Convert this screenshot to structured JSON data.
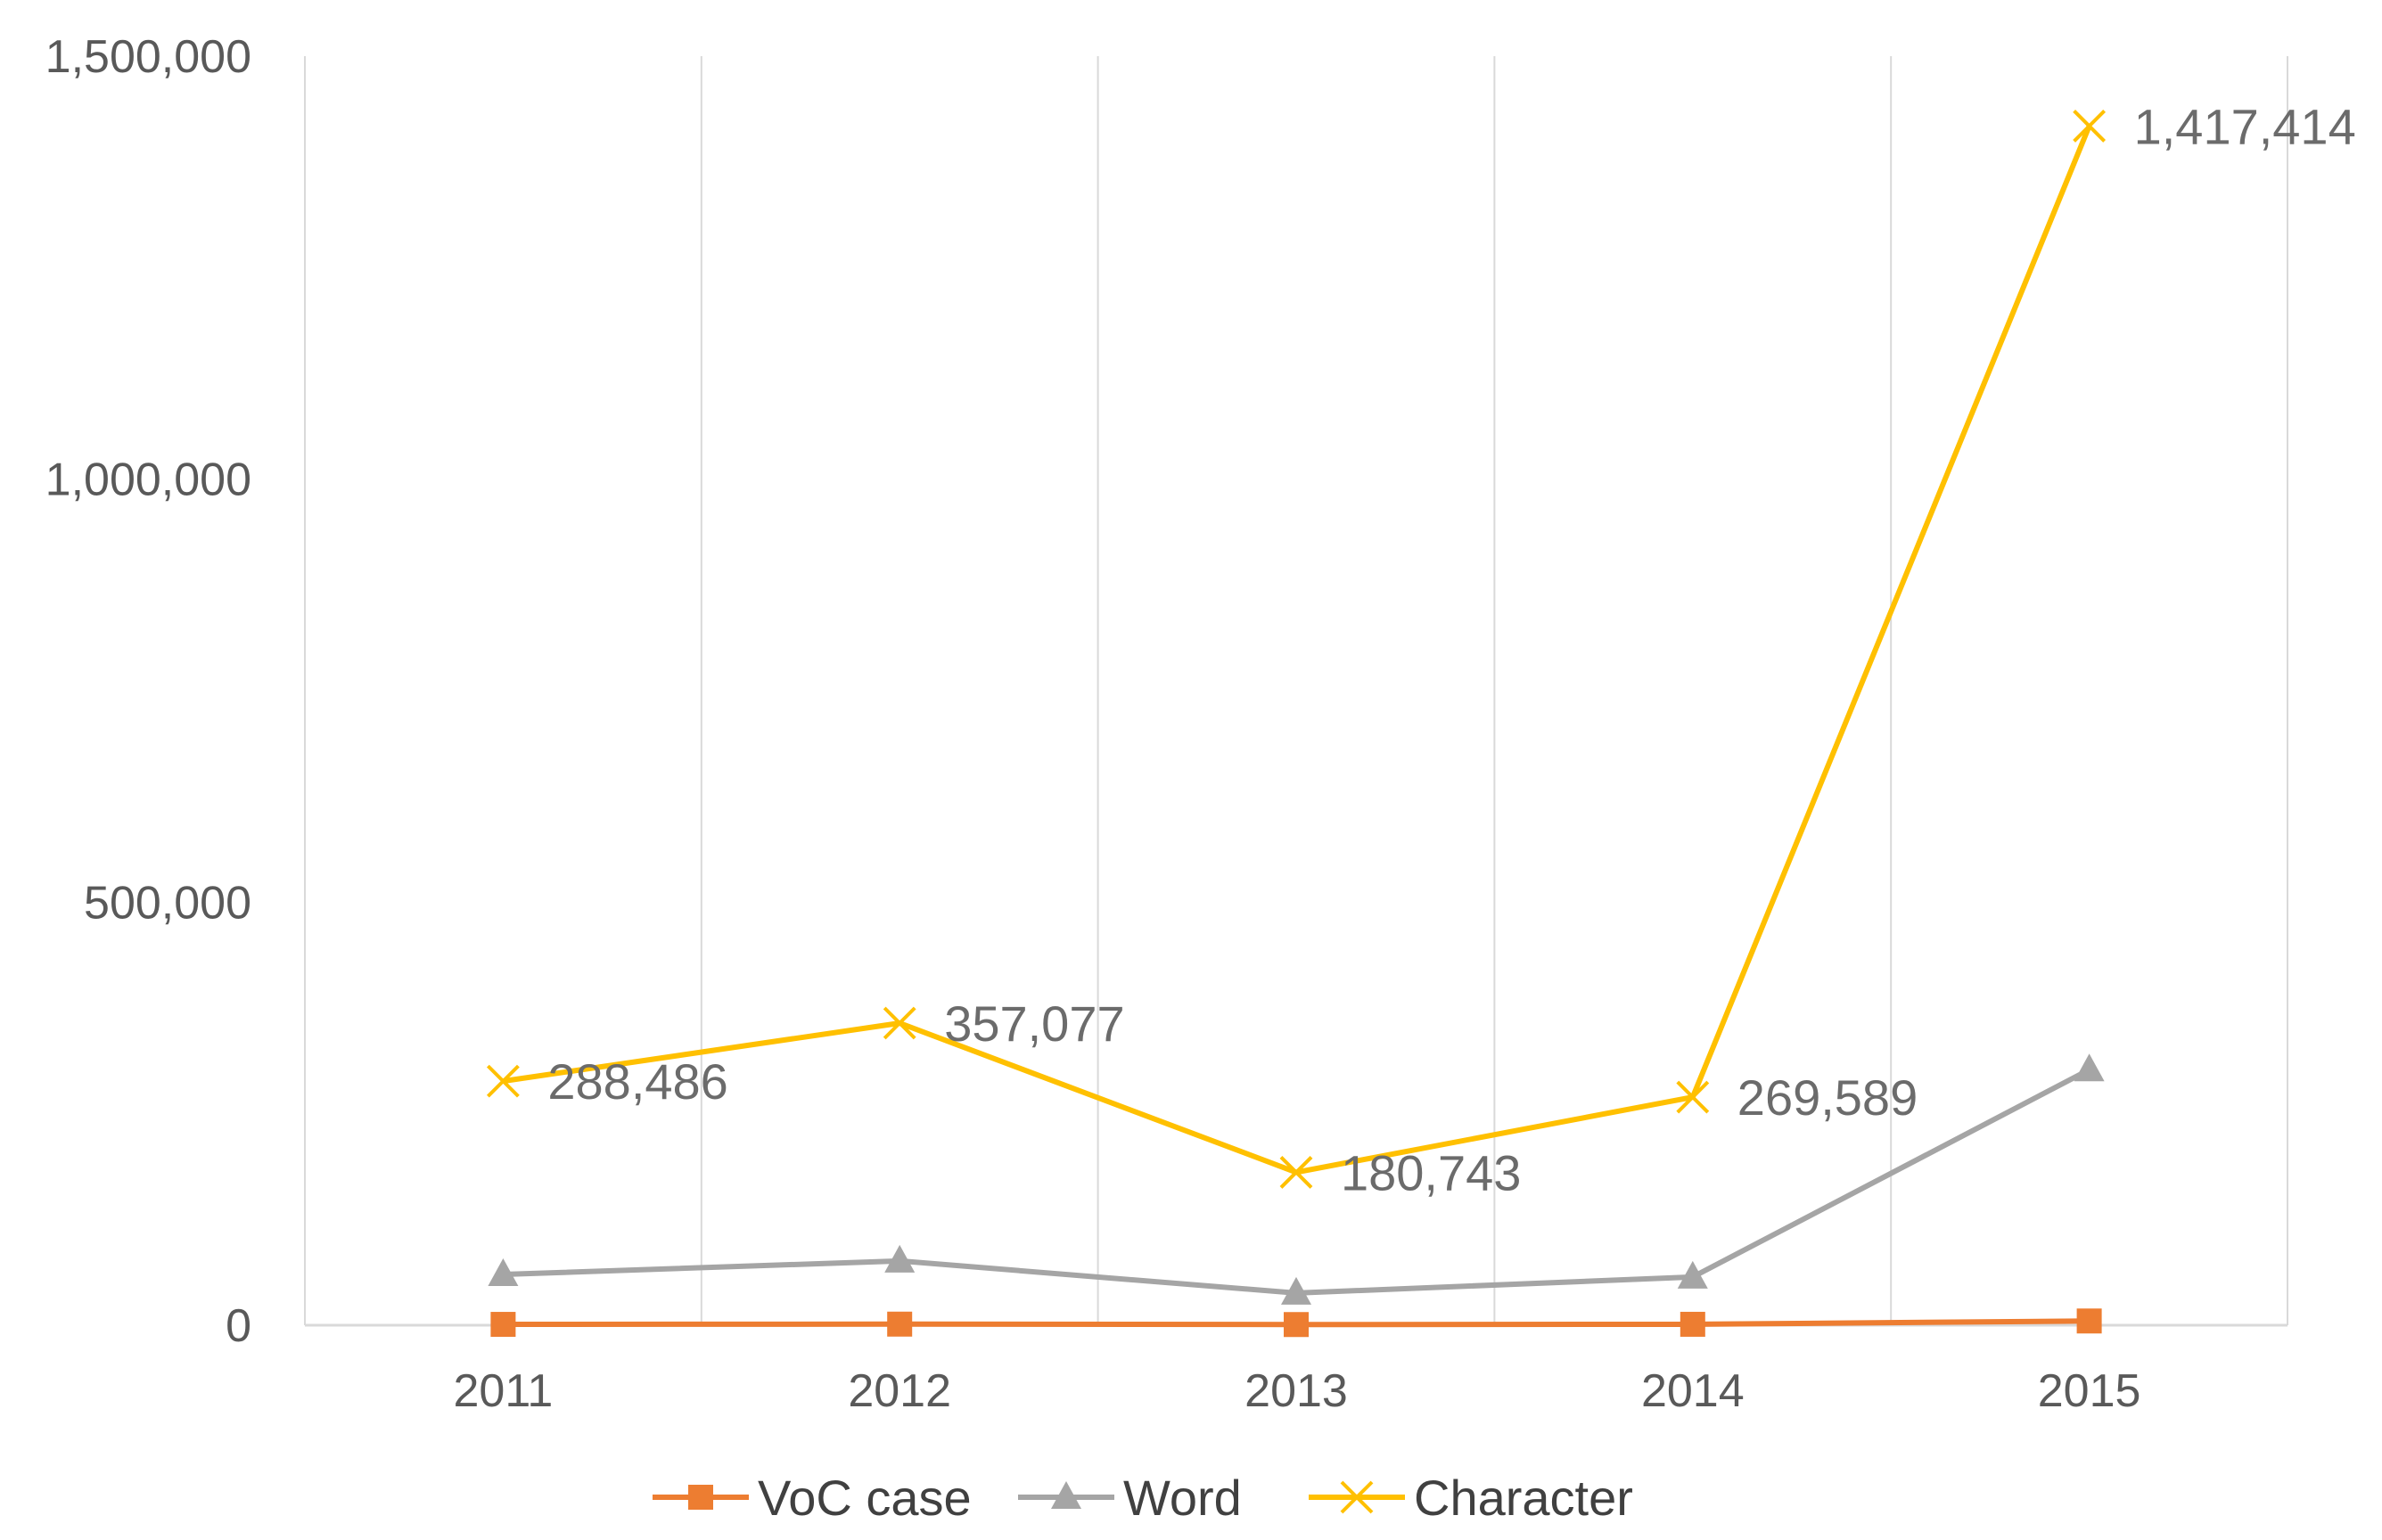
{
  "chart_data": {
    "type": "line",
    "title": "",
    "xlabel": "",
    "ylabel": "",
    "categories": [
      "2011",
      "2012",
      "2013",
      "2014",
      "2015"
    ],
    "ylim": [
      0,
      1500000
    ],
    "yticks": [
      0,
      500000,
      1000000,
      1500000
    ],
    "ytick_labels": [
      "0",
      "500,000",
      "1,000,000",
      "1,500,000"
    ],
    "grid": "vertical",
    "legend_position": "bottom",
    "series": [
      {
        "name": "VoC case",
        "values": [
          1000,
          1300,
          800,
          1100,
          5000
        ],
        "color": "#ED7D31",
        "marker": "square",
        "data_labels": []
      },
      {
        "name": "Word",
        "values": [
          60000,
          76000,
          38000,
          57000,
          302000
        ],
        "color": "#A5A5A5",
        "marker": "triangle",
        "data_labels": []
      },
      {
        "name": "Character",
        "values": [
          288486,
          357077,
          180743,
          269589,
          1417414
        ],
        "color": "#FFC000",
        "marker": "x",
        "data_labels": [
          "288,486",
          "357,077",
          "180,743",
          "269,589",
          "1,417,414"
        ]
      }
    ]
  }
}
